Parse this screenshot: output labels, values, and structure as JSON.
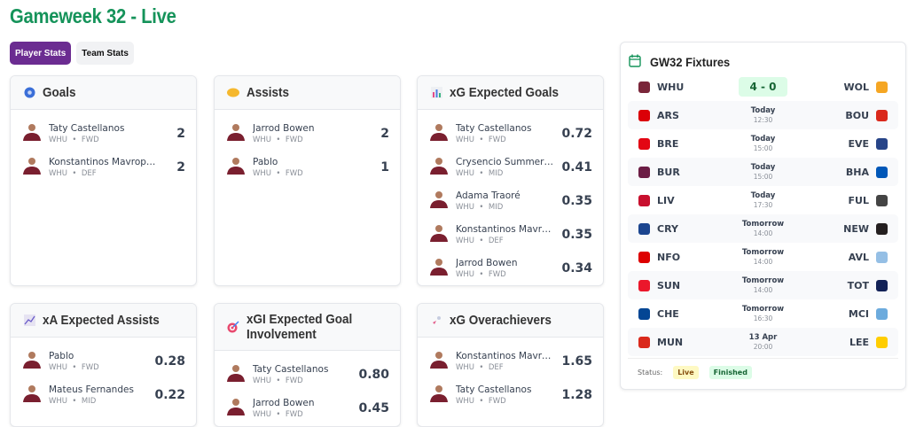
{
  "header": {
    "title": "Gameweek 32 - Live"
  },
  "tabs": [
    {
      "label": "Player Stats",
      "active": true
    },
    {
      "label": "Team Stats",
      "active": false
    }
  ],
  "cards": [
    {
      "title": "Goals",
      "icon": "soccer-ball-icon",
      "players": [
        {
          "name": "Taty Castellanos",
          "team": "WHU",
          "pos": "FWD",
          "value": "2"
        },
        {
          "name": "Konstantinos Mavropanos",
          "team": "WHU",
          "pos": "DEF",
          "value": "2"
        }
      ]
    },
    {
      "title": "Assists",
      "icon": "handshake-icon",
      "players": [
        {
          "name": "Jarrod Bowen",
          "team": "WHU",
          "pos": "FWD",
          "value": "2"
        },
        {
          "name": "Pablo",
          "team": "WHU",
          "pos": "FWD",
          "value": "1"
        }
      ]
    },
    {
      "title": "xG Expected Goals",
      "icon": "bar-chart-icon",
      "players": [
        {
          "name": "Taty Castellanos",
          "team": "WHU",
          "pos": "FWD",
          "value": "0.72"
        },
        {
          "name": "Crysencio Summerville",
          "team": "WHU",
          "pos": "MID",
          "value": "0.41"
        },
        {
          "name": "Adama Traoré",
          "team": "WHU",
          "pos": "MID",
          "value": "0.35"
        },
        {
          "name": "Konstantinos Mavropan...",
          "team": "WHU",
          "pos": "DEF",
          "value": "0.35"
        },
        {
          "name": "Jarrod Bowen",
          "team": "WHU",
          "pos": "FWD",
          "value": "0.34"
        }
      ]
    },
    {
      "title": "xA Expected Assists",
      "icon": "trend-chart-icon",
      "players": [
        {
          "name": "Pablo",
          "team": "WHU",
          "pos": "FWD",
          "value": "0.28"
        },
        {
          "name": "Mateus Fernandes",
          "team": "WHU",
          "pos": "MID",
          "value": "0.22"
        }
      ]
    },
    {
      "title": "xGI Expected Goal Involvement",
      "icon": "target-icon",
      "players": [
        {
          "name": "Taty Castellanos",
          "team": "WHU",
          "pos": "FWD",
          "value": "0.80"
        },
        {
          "name": "Jarrod Bowen",
          "team": "WHU",
          "pos": "FWD",
          "value": "0.45"
        }
      ]
    },
    {
      "title": "xG Overachievers",
      "icon": "rocket-icon",
      "players": [
        {
          "name": "Konstantinos Mavropan...",
          "team": "WHU",
          "pos": "DEF",
          "value": "1.65"
        },
        {
          "name": "Taty Castellanos",
          "team": "WHU",
          "pos": "FWD",
          "value": "1.28"
        }
      ]
    }
  ],
  "fixtures": {
    "title": "GW32 Fixtures",
    "items": [
      {
        "home": "WHU",
        "away": "WOL",
        "score": "4 - 0",
        "homeColor": "#7a263a",
        "awayColor": "#f5a623"
      },
      {
        "home": "ARS",
        "away": "BOU",
        "day": "Today",
        "time": "12:30",
        "homeColor": "#db0007",
        "awayColor": "#da291c"
      },
      {
        "home": "BRE",
        "away": "EVE",
        "day": "Today",
        "time": "15:00",
        "homeColor": "#e30613",
        "awayColor": "#274488"
      },
      {
        "home": "BUR",
        "away": "BHA",
        "day": "Today",
        "time": "15:00",
        "homeColor": "#6c1d45",
        "awayColor": "#0057b8"
      },
      {
        "home": "LIV",
        "away": "FUL",
        "day": "Today",
        "time": "17:30",
        "homeColor": "#c8102e",
        "awayColor": "#444444"
      },
      {
        "home": "CRY",
        "away": "NEW",
        "day": "Tomorrow",
        "time": "14:00",
        "homeColor": "#1b458f",
        "awayColor": "#241f20"
      },
      {
        "home": "NFO",
        "away": "AVL",
        "day": "Tomorrow",
        "time": "14:00",
        "homeColor": "#dd0000",
        "awayColor": "#95bfe5"
      },
      {
        "home": "SUN",
        "away": "TOT",
        "day": "Tomorrow",
        "time": "14:00",
        "homeColor": "#eb172b",
        "awayColor": "#132257"
      },
      {
        "home": "CHE",
        "away": "MCI",
        "day": "Tomorrow",
        "time": "16:30",
        "homeColor": "#034694",
        "awayColor": "#6cabdd"
      },
      {
        "home": "MUN",
        "away": "LEE",
        "day": "13 Apr",
        "time": "20:00",
        "homeColor": "#da291c",
        "awayColor": "#ffcd00"
      }
    ],
    "legend": {
      "label": "Status:",
      "live": "Live",
      "finished": "Finished",
      "liveColor": "#fef9c3",
      "finishedColor": "#dcfce7"
    }
  }
}
